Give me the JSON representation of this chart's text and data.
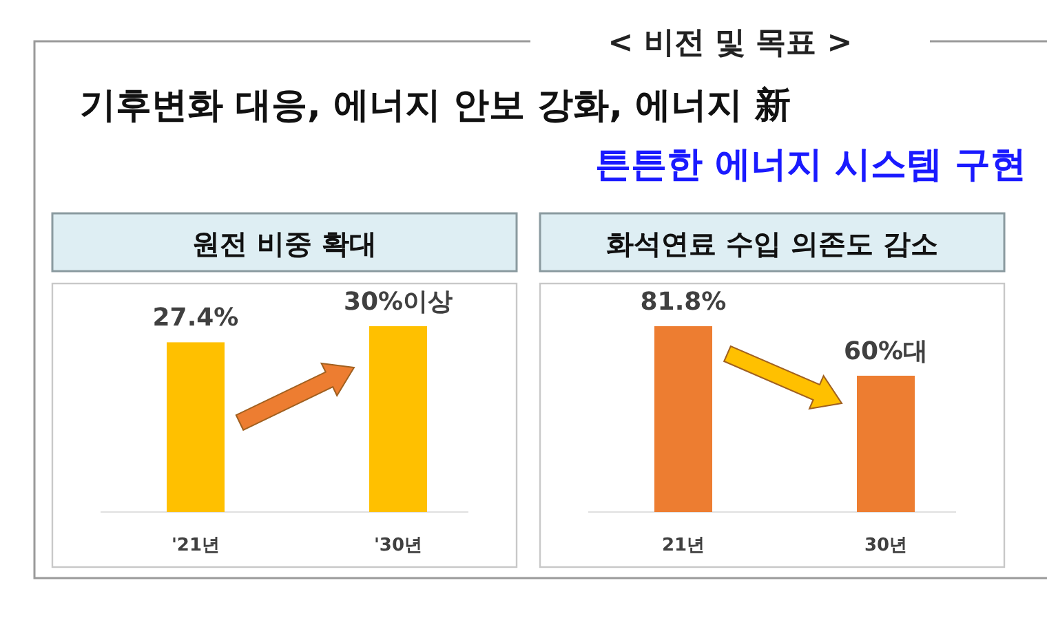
{
  "chart_data": [
    {
      "type": "other",
      "title": "< 비전 및 목표 >",
      "subtitle": "기후변화 대응, 에너지 안보 강화, 에너지 新",
      "annotations": [
        "튼튼한 에너지 시스템 구현"
      ]
    },
    {
      "type": "bar",
      "title": "원전 비중 확대",
      "categories": [
        "'21년",
        "'30년"
      ],
      "values": [
        27.4,
        30
      ],
      "colors": [
        "#ffc000",
        "#ffc000"
      ],
      "value_labels": [
        "27.4%",
        "30%이상"
      ]
    },
    {
      "type": "bar",
      "title": "화석연료 수입 의존도 감소",
      "categories": [
        "21년",
        "30년"
      ],
      "values": [
        81.8,
        60
      ],
      "colors": [
        "#ed7d31",
        "#ed7d31"
      ],
      "value_labels": [
        "81.8%",
        "60%대"
      ]
    }
  ]
}
